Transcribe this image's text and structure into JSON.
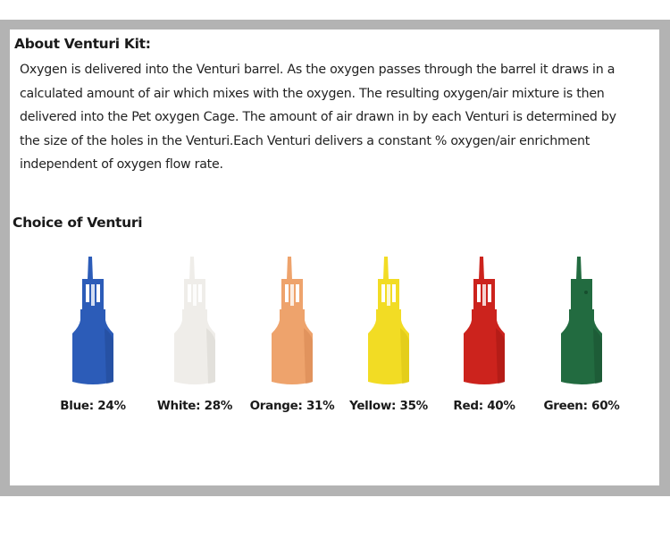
{
  "about": {
    "heading": "About Venturi Kit:",
    "text": "Oxygen is delivered into the Venturi barrel. As the oxygen passes through the barrel it draws in a calculated amount of air which mixes with the oxygen. The resulting oxygen/air mixture is then delivered into the Pet oxygen Cage. The amount of air drawn in by each Venturi is determined by the size  of the holes in the Venturi.Each Venturi delivers a constant % oxygen/air enrichment independent  of oxygen flow rate."
  },
  "choice": {
    "heading": "Choice of Venturi",
    "items": [
      {
        "label": "Blue: 24%",
        "color": "#2c5cb8",
        "shade": "#1f4590"
      },
      {
        "label": "White: 28%",
        "color": "#efede9",
        "shade": "#d6d3cd"
      },
      {
        "label": "Orange: 31%",
        "color": "#eea36c",
        "shade": "#d4844d"
      },
      {
        "label": "Yellow: 35%",
        "color": "#f2dc24",
        "shade": "#d6bf10"
      },
      {
        "label": "Red: 40%",
        "color": "#cc231d",
        "shade": "#9e1512"
      },
      {
        "label": "Green: 60%",
        "color": "#226b40",
        "shade": "#174e2e"
      }
    ]
  }
}
